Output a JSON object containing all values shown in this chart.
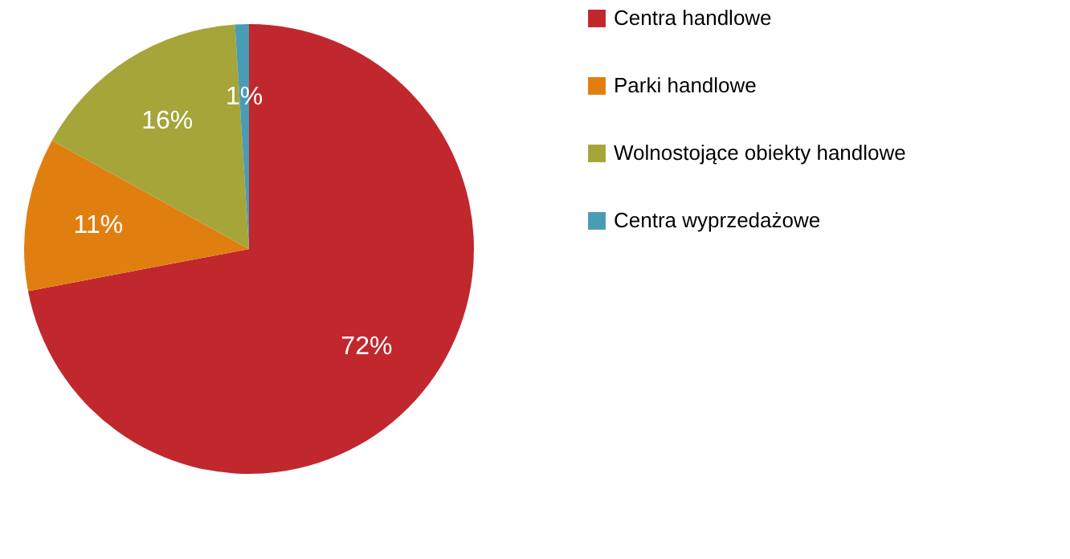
{
  "chart_data": {
    "type": "pie",
    "categories": [
      "Centra handlowe",
      "Parki handlowe",
      "Wolnostojące obiekty handlowe",
      "Centra wyprzedażowe"
    ],
    "values": [
      72,
      11,
      16,
      1
    ],
    "colors": [
      "#c0282d",
      "#e07f10",
      "#a5a53a",
      "#4a9cb4"
    ],
    "value_labels": [
      "72%",
      "11%",
      "16%",
      "1%"
    ],
    "legend": "right"
  }
}
